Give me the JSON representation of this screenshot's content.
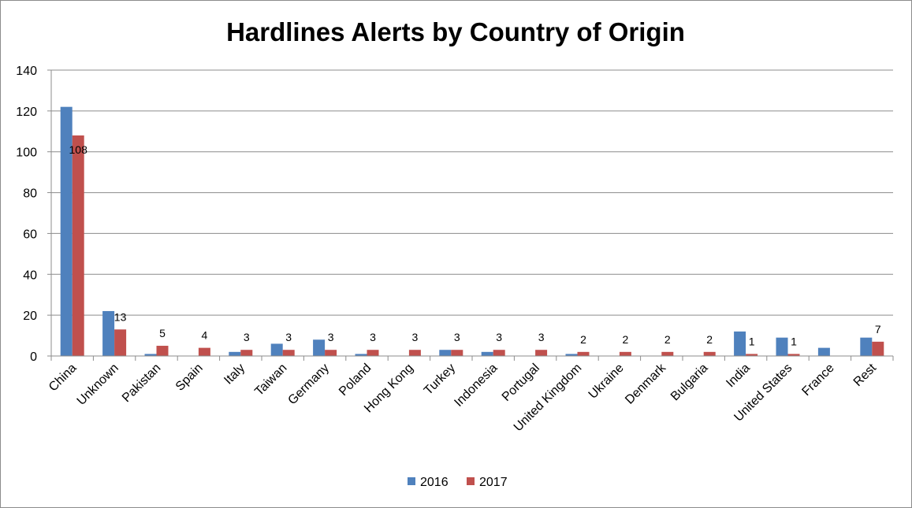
{
  "chart_data": {
    "type": "bar",
    "title": "Hardlines Alerts by Country of Origin",
    "xlabel": "",
    "ylabel": "",
    "ylim": [
      0,
      140
    ],
    "yticks": [
      0,
      20,
      40,
      60,
      80,
      100,
      120,
      140
    ],
    "grid": true,
    "legend_position": "bottom",
    "categories": [
      "China",
      "Unknown",
      "Pakistan",
      "Spain",
      "Italy",
      "Taiwan",
      "Germany",
      "Poland",
      "Hong Kong",
      "Turkey",
      "Indonesia",
      "Portugal",
      "United Kingdom",
      "Ukraine",
      "Denmark",
      "Bulgaria",
      "India",
      "United States",
      "France",
      "Rest"
    ],
    "series": [
      {
        "name": "2016",
        "color": "#4f81bd",
        "values": [
          122,
          22,
          1,
          0,
          2,
          6,
          8,
          1,
          0,
          3,
          2,
          0,
          1,
          0,
          0,
          0,
          12,
          9,
          4,
          9
        ],
        "data_labels": [
          null,
          null,
          null,
          null,
          null,
          null,
          null,
          null,
          null,
          null,
          null,
          null,
          null,
          null,
          null,
          null,
          null,
          null,
          null,
          null
        ]
      },
      {
        "name": "2017",
        "color": "#c0504d",
        "values": [
          108,
          13,
          5,
          4,
          3,
          3,
          3,
          3,
          3,
          3,
          3,
          3,
          2,
          2,
          2,
          2,
          1,
          1,
          0,
          7
        ],
        "data_labels": [
          "108",
          "13",
          "5",
          "4",
          "3",
          "3",
          "3",
          "3",
          "3",
          "3",
          "3",
          "3",
          "2",
          "2",
          "2",
          "2",
          "1",
          "1",
          null,
          "7"
        ]
      }
    ]
  }
}
